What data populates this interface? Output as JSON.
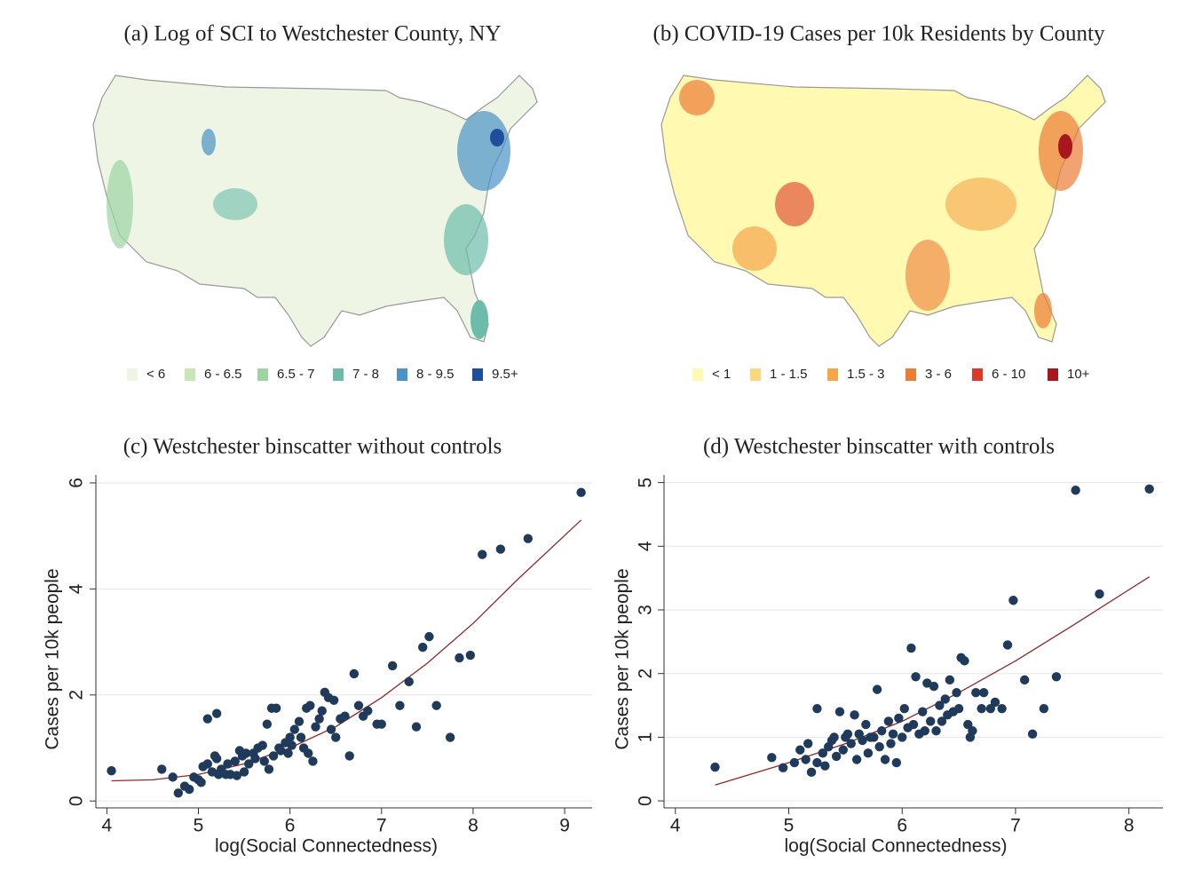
{
  "chart_data": [
    {
      "type": "choropleth",
      "title": "(a) Log of SCI to Westchester County, NY",
      "legend": [
        {
          "label": "< 6",
          "color": "#eef5e4"
        },
        {
          "label": "6 - 6.5",
          "color": "#c8e6b6"
        },
        {
          "label": "6.5 - 7",
          "color": "#9dd4a2"
        },
        {
          "label": "7 - 8",
          "color": "#6cbcaa"
        },
        {
          "label": "8 - 9.5",
          "color": "#4a93c6"
        },
        {
          "label": "9.5+",
          "color": "#1f4e9c"
        }
      ]
    },
    {
      "type": "choropleth",
      "title": "(b) COVID-19 Cases per 10k Residents by County",
      "legend": [
        {
          "label": "< 1",
          "color": "#fff9b2"
        },
        {
          "label": "1 - 1.5",
          "color": "#fcd67a"
        },
        {
          "label": "1.5 - 3",
          "color": "#f5a54a"
        },
        {
          "label": "3 - 6",
          "color": "#ec7c36"
        },
        {
          "label": "6 - 10",
          "color": "#dc3a26"
        },
        {
          "label": "10+",
          "color": "#a8161e"
        }
      ]
    },
    {
      "type": "scatter",
      "title": "(c) Westchester binscatter without controls",
      "xlabel": "log(Social Connectedness)",
      "ylabel": "Cases per 10k people",
      "xlim": [
        3.88,
        9.3
      ],
      "ylim": [
        -0.13,
        6.15
      ],
      "xticks": [
        4,
        5,
        6,
        7,
        8,
        9
      ],
      "yticks": [
        0,
        2,
        4,
        6
      ],
      "grid": true,
      "color": "#1f3a5a",
      "fit_color": "#8b2a2a",
      "x": [
        4.05,
        4.6,
        4.72,
        4.78,
        4.85,
        4.9,
        4.95,
        5.0,
        5.03,
        5.05,
        5.1,
        5.1,
        5.15,
        5.18,
        5.2,
        5.2,
        5.22,
        5.25,
        5.3,
        5.32,
        5.35,
        5.4,
        5.42,
        5.45,
        5.48,
        5.5,
        5.52,
        5.55,
        5.6,
        5.62,
        5.65,
        5.7,
        5.72,
        5.75,
        5.77,
        5.8,
        5.82,
        5.85,
        5.88,
        5.9,
        5.95,
        5.98,
        6.0,
        6.02,
        6.05,
        6.1,
        6.12,
        6.15,
        6.18,
        6.2,
        6.22,
        6.25,
        6.28,
        6.32,
        6.35,
        6.38,
        6.42,
        6.45,
        6.48,
        6.5,
        6.55,
        6.6,
        6.65,
        6.7,
        6.75,
        6.8,
        6.85,
        6.95,
        7.0,
        7.12,
        7.2,
        7.3,
        7.38,
        7.45,
        7.52,
        7.6,
        7.75,
        7.85,
        7.97,
        8.1,
        8.3,
        8.6,
        9.18
      ],
      "values": [
        0.57,
        0.6,
        0.45,
        0.15,
        0.28,
        0.22,
        0.45,
        0.4,
        0.35,
        0.65,
        1.55,
        0.7,
        0.55,
        0.85,
        0.8,
        1.65,
        0.5,
        0.6,
        0.5,
        0.7,
        0.5,
        0.75,
        0.48,
        0.95,
        0.85,
        0.55,
        0.9,
        0.7,
        0.9,
        0.8,
        1.0,
        1.05,
        0.75,
        1.45,
        0.6,
        1.75,
        0.85,
        1.75,
        1.0,
        0.95,
        1.1,
        0.9,
        1.2,
        1.05,
        1.35,
        1.5,
        1.2,
        1.0,
        1.75,
        0.9,
        1.8,
        0.75,
        1.4,
        1.55,
        1.7,
        2.05,
        1.95,
        1.35,
        1.9,
        1.2,
        1.55,
        1.6,
        0.85,
        2.4,
        1.8,
        1.6,
        1.7,
        1.45,
        1.45,
        2.55,
        1.8,
        2.25,
        1.4,
        2.9,
        3.1,
        1.8,
        1.2,
        2.7,
        2.75,
        4.65,
        4.75,
        4.95,
        5.82
      ],
      "fit": {
        "x": [
          4.05,
          4.5,
          5,
          5.5,
          6,
          6.5,
          7,
          7.5,
          8,
          8.5,
          9.18
        ],
        "values": [
          0.38,
          0.4,
          0.5,
          0.7,
          1.0,
          1.4,
          1.95,
          2.6,
          3.35,
          4.2,
          5.3
        ]
      }
    },
    {
      "type": "scatter",
      "title": "(d) Westchester binscatter with controls",
      "xlabel": "log(Social Connectedness)",
      "ylabel": "Cases per 10k people",
      "xlim": [
        3.9,
        8.3
      ],
      "ylim": [
        -0.11,
        5.12
      ],
      "xticks": [
        4,
        5,
        6,
        7,
        8
      ],
      "yticks": [
        0,
        1,
        2,
        3,
        4,
        5
      ],
      "grid": true,
      "color": "#1f3a5a",
      "fit_color": "#8b2a2a",
      "x": [
        4.35,
        4.85,
        4.95,
        5.05,
        5.1,
        5.15,
        5.17,
        5.2,
        5.25,
        5.25,
        5.3,
        5.32,
        5.35,
        5.38,
        5.4,
        5.42,
        5.45,
        5.48,
        5.5,
        5.52,
        5.55,
        5.58,
        5.6,
        5.62,
        5.65,
        5.68,
        5.7,
        5.72,
        5.75,
        5.78,
        5.8,
        5.82,
        5.85,
        5.88,
        5.9,
        5.92,
        5.95,
        5.97,
        6.0,
        6.02,
        6.05,
        6.08,
        6.1,
        6.12,
        6.15,
        6.18,
        6.2,
        6.22,
        6.25,
        6.28,
        6.3,
        6.33,
        6.35,
        6.38,
        6.4,
        6.42,
        6.45,
        6.48,
        6.5,
        6.52,
        6.55,
        6.58,
        6.6,
        6.62,
        6.65,
        6.7,
        6.72,
        6.78,
        6.82,
        6.88,
        6.93,
        6.98,
        7.08,
        7.15,
        7.25,
        7.36,
        7.53,
        7.74,
        8.18
      ],
      "values": [
        0.53,
        0.68,
        0.52,
        0.6,
        0.8,
        0.65,
        0.9,
        0.45,
        0.6,
        1.45,
        0.75,
        0.55,
        0.85,
        0.95,
        1.0,
        0.7,
        1.4,
        0.8,
        1.0,
        1.05,
        0.9,
        1.35,
        0.65,
        1.05,
        0.95,
        1.2,
        0.75,
        1.0,
        1.0,
        1.75,
        0.85,
        1.1,
        0.65,
        1.25,
        0.9,
        1.05,
        0.6,
        1.3,
        1.0,
        1.45,
        1.15,
        2.4,
        1.2,
        1.95,
        1.05,
        1.4,
        1.1,
        1.85,
        1.25,
        1.8,
        1.1,
        1.5,
        1.25,
        1.6,
        1.35,
        1.9,
        1.4,
        1.7,
        1.45,
        2.25,
        2.2,
        1.2,
        1.0,
        1.1,
        1.7,
        1.45,
        1.7,
        1.45,
        1.55,
        1.45,
        2.45,
        3.15,
        1.9,
        1.05,
        1.45,
        1.95,
        4.88,
        3.25,
        4.9
      ],
      "fit": {
        "x": [
          4.35,
          5,
          5.5,
          6,
          6.5,
          7,
          7.5,
          8.18
        ],
        "values": [
          0.25,
          0.6,
          0.9,
          1.25,
          1.7,
          2.2,
          2.75,
          3.52
        ]
      }
    }
  ]
}
